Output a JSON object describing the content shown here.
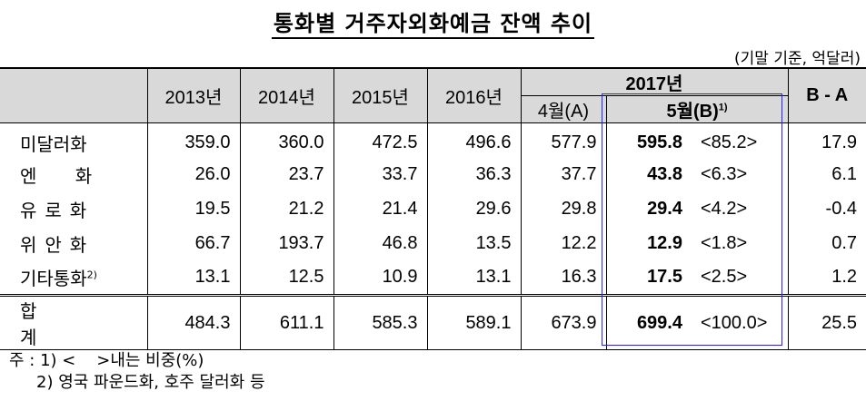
{
  "title": "통화별 거주자외화예금 잔액 추이",
  "unit": "(기말 기준, 억달러)",
  "header": {
    "years": [
      "2013년",
      "2014년",
      "2015년",
      "2016년"
    ],
    "year_2017": "2017년",
    "april": "4월(A)",
    "may": "5월(B)",
    "may_sup": "1)",
    "diff": "B - A"
  },
  "rows": [
    {
      "label": "미달러화",
      "sup": "",
      "v2013": "359.0",
      "v2014": "360.0",
      "v2015": "472.5",
      "v2016": "496.6",
      "apr": "577.9",
      "may": "595.8",
      "share": "<85.2>",
      "diff": "17.9"
    },
    {
      "label": "엔 화",
      "sup": "",
      "v2013": "26.0",
      "v2014": "23.7",
      "v2015": "33.7",
      "v2016": "36.3",
      "apr": "37.7",
      "may": "43.8",
      "share": "<6.3>",
      "diff": "6.1"
    },
    {
      "label": "유로화",
      "sup": "",
      "v2013": "19.5",
      "v2014": "21.2",
      "v2015": "21.4",
      "v2016": "29.6",
      "apr": "29.8",
      "may": "29.4",
      "share": "<4.2>",
      "diff": "-0.4"
    },
    {
      "label": "위안화",
      "sup": "",
      "v2013": "66.7",
      "v2014": "193.7",
      "v2015": "46.8",
      "v2016": "13.5",
      "apr": "12.2",
      "may": "12.9",
      "share": "<1.8>",
      "diff": "0.7"
    },
    {
      "label": "기타통화",
      "sup": "2)",
      "v2013": "13.1",
      "v2014": "12.5",
      "v2015": "10.9",
      "v2016": "13.1",
      "apr": "16.3",
      "may": "17.5",
      "share": "<2.5>",
      "diff": "1.2"
    }
  ],
  "total": {
    "label": "합 계",
    "v2013": "484.3",
    "v2014": "611.1",
    "v2015": "585.3",
    "v2016": "589.1",
    "apr": "673.9",
    "may": "699.4",
    "share": "<100.0>",
    "diff": "25.5"
  },
  "notes": {
    "note1": "주 : 1) <    >내는 비중(%)",
    "note2": "2) 영국 파운드화, 호주 달러화 등"
  },
  "colors": {
    "header_bg": "#d9d9d9",
    "highlight_border": "#2b2bbd"
  }
}
